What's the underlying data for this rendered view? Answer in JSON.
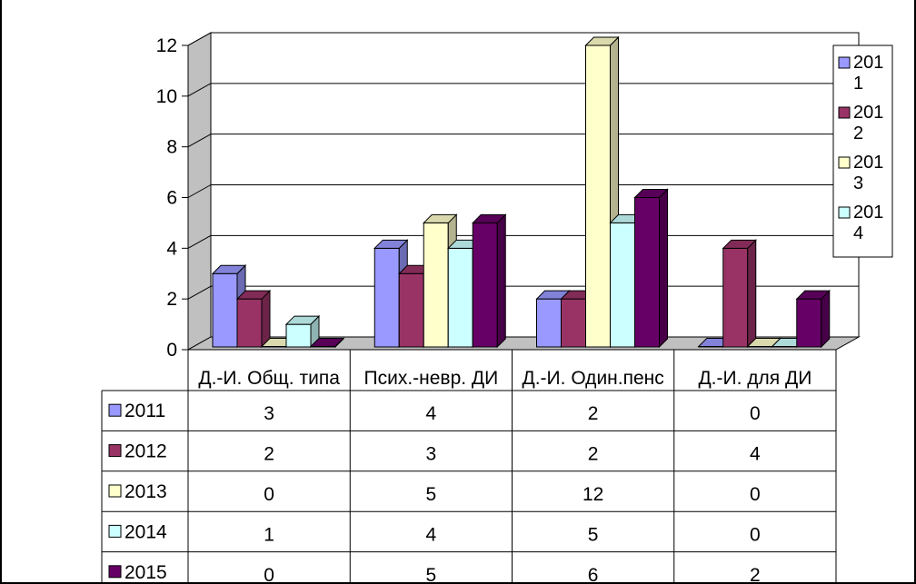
{
  "chart_data": {
    "type": "bar",
    "title": "",
    "xlabel": "",
    "ylabel": "",
    "ylim": [
      0,
      12
    ],
    "yticks": [
      "0",
      "2",
      "4",
      "6",
      "8",
      "10",
      "12"
    ],
    "grid": true,
    "legend_position": "right",
    "categories": [
      "Д.-И. Общ. типа",
      "Псих.-невр. ДИ",
      "Д.-И. Один.пенс",
      "Д.-И. для ДИ"
    ],
    "series": [
      {
        "name": "2011",
        "legend_lines": [
          "201",
          "1"
        ],
        "color": "#9999ff",
        "values": [
          3,
          4,
          2,
          0
        ]
      },
      {
        "name": "2012",
        "legend_lines": [
          "201",
          "2"
        ],
        "color": "#993366",
        "values": [
          2,
          3,
          2,
          4
        ]
      },
      {
        "name": "2013",
        "legend_lines": [
          "201",
          "3"
        ],
        "color": "#ffffcc",
        "values": [
          0,
          5,
          12,
          0
        ]
      },
      {
        "name": "2014",
        "legend_lines": [
          "201",
          "4"
        ],
        "color": "#ccffff",
        "values": [
          1,
          4,
          5,
          0
        ]
      },
      {
        "name": "2015",
        "legend_lines": [],
        "color": "#660066",
        "values": [
          0,
          5,
          6,
          2
        ]
      }
    ],
    "data_table": true,
    "wall_color": "#c0c0c0"
  }
}
